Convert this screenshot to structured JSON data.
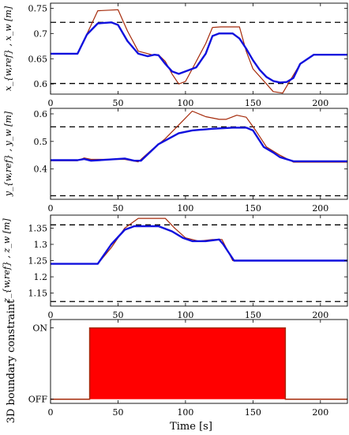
{
  "chart_data": [
    {
      "type": "line",
      "ylabel": "x_{w,ref} , x_w [m]",
      "xlim": [
        0,
        220
      ],
      "ylim": [
        0.58,
        0.76
      ],
      "xticks": [
        0,
        50,
        100,
        150,
        200
      ],
      "yticks": [
        0.6,
        0.65,
        0.7,
        0.75
      ],
      "ytick_labels": [
        "0.6",
        "0.65",
        "0.7",
        "0.75"
      ],
      "bounds": [
        0.601,
        0.722
      ],
      "series": [
        {
          "color": "#a52a0a",
          "x": [
            0,
            20,
            28,
            35,
            50,
            57,
            65,
            75,
            80,
            85,
            90,
            95,
            100,
            105,
            115,
            120,
            126,
            140,
            145,
            150,
            160,
            165,
            172,
            176,
            185,
            195,
            220
          ],
          "y": [
            0.66,
            0.66,
            0.705,
            0.745,
            0.747,
            0.705,
            0.665,
            0.658,
            0.658,
            0.645,
            0.62,
            0.6,
            0.605,
            0.63,
            0.68,
            0.712,
            0.713,
            0.713,
            0.665,
            0.63,
            0.6,
            0.585,
            0.582,
            0.6,
            0.64,
            0.658,
            0.658
          ]
        },
        {
          "color": "#1010dd",
          "x": [
            0,
            20,
            27,
            35,
            45,
            50,
            57,
            65,
            72,
            77,
            80,
            85,
            90,
            95,
            100,
            108,
            115,
            120,
            125,
            135,
            140,
            145,
            150,
            155,
            160,
            165,
            170,
            175,
            180,
            185,
            195,
            220
          ],
          "y": [
            0.66,
            0.66,
            0.698,
            0.72,
            0.722,
            0.717,
            0.685,
            0.66,
            0.655,
            0.658,
            0.657,
            0.64,
            0.625,
            0.62,
            0.625,
            0.633,
            0.66,
            0.695,
            0.7,
            0.7,
            0.69,
            0.67,
            0.647,
            0.628,
            0.614,
            0.606,
            0.603,
            0.604,
            0.612,
            0.64,
            0.658,
            0.658
          ]
        }
      ]
    },
    {
      "type": "line",
      "ylabel": "y_{w,ref} , y_w [m]",
      "xlim": [
        0,
        220
      ],
      "ylim": [
        0.29,
        0.62
      ],
      "xticks": [
        0,
        50,
        100,
        150,
        200
      ],
      "yticks": [
        0.4,
        0.5,
        0.6
      ],
      "ytick_labels": [
        "0.4",
        "0.5",
        "0.6"
      ],
      "bounds": [
        0.303,
        0.553
      ],
      "series": [
        {
          "color": "#a52a0a",
          "x": [
            0,
            20,
            25,
            30,
            55,
            65,
            75,
            85,
            95,
            105,
            115,
            125,
            130,
            138,
            145,
            152,
            160,
            170,
            180,
            220
          ],
          "y": [
            0.43,
            0.43,
            0.44,
            0.435,
            0.435,
            0.426,
            0.47,
            0.51,
            0.56,
            0.61,
            0.59,
            0.58,
            0.58,
            0.595,
            0.588,
            0.54,
            0.48,
            0.45,
            0.425,
            0.425
          ]
        },
        {
          "color": "#1010dd",
          "x": [
            0,
            20,
            25,
            30,
            55,
            62,
            67,
            80,
            95,
            105,
            120,
            135,
            145,
            150,
            158,
            165,
            170,
            180,
            220
          ],
          "y": [
            0.432,
            0.432,
            0.436,
            0.43,
            0.438,
            0.43,
            0.43,
            0.49,
            0.53,
            0.54,
            0.546,
            0.55,
            0.55,
            0.54,
            0.48,
            0.46,
            0.443,
            0.428,
            0.428
          ]
        }
      ]
    },
    {
      "type": "line",
      "ylabel": "z_{w,ref} , z_w [m]",
      "xlim": [
        0,
        220
      ],
      "ylim": [
        1.11,
        1.39
      ],
      "xticks": [
        0,
        50,
        100,
        150,
        200
      ],
      "yticks": [
        1.15,
        1.2,
        1.25,
        1.3,
        1.35
      ],
      "ytick_labels": [
        "1.15",
        "1.2",
        "1.25",
        "1.3",
        "1.35"
      ],
      "bounds": [
        1.124,
        1.36
      ],
      "series": [
        {
          "color": "#a52a0a",
          "x": [
            0,
            35,
            45,
            55,
            65,
            85,
            92,
            100,
            110,
            120,
            127,
            135,
            220
          ],
          "y": [
            1.24,
            1.24,
            1.29,
            1.35,
            1.38,
            1.38,
            1.35,
            1.32,
            1.31,
            1.315,
            1.315,
            1.25,
            1.25
          ]
        },
        {
          "color": "#1010dd",
          "x": [
            0,
            35,
            45,
            55,
            62,
            80,
            90,
            98,
            105,
            115,
            125,
            128,
            136,
            220
          ],
          "y": [
            1.24,
            1.24,
            1.3,
            1.345,
            1.356,
            1.356,
            1.34,
            1.32,
            1.31,
            1.31,
            1.315,
            1.3,
            1.25,
            1.25
          ]
        }
      ]
    },
    {
      "type": "area",
      "ylabel": "3D boundary constraint",
      "xlabel": "Time [s]",
      "xlim": [
        0,
        220
      ],
      "xticks": [
        0,
        50,
        100,
        150,
        200
      ],
      "state_labels": [
        "ON",
        "OFF"
      ],
      "fill_color": "#ff0000",
      "edge_color": "#a52a0a",
      "on_interval": [
        29,
        174
      ]
    }
  ]
}
